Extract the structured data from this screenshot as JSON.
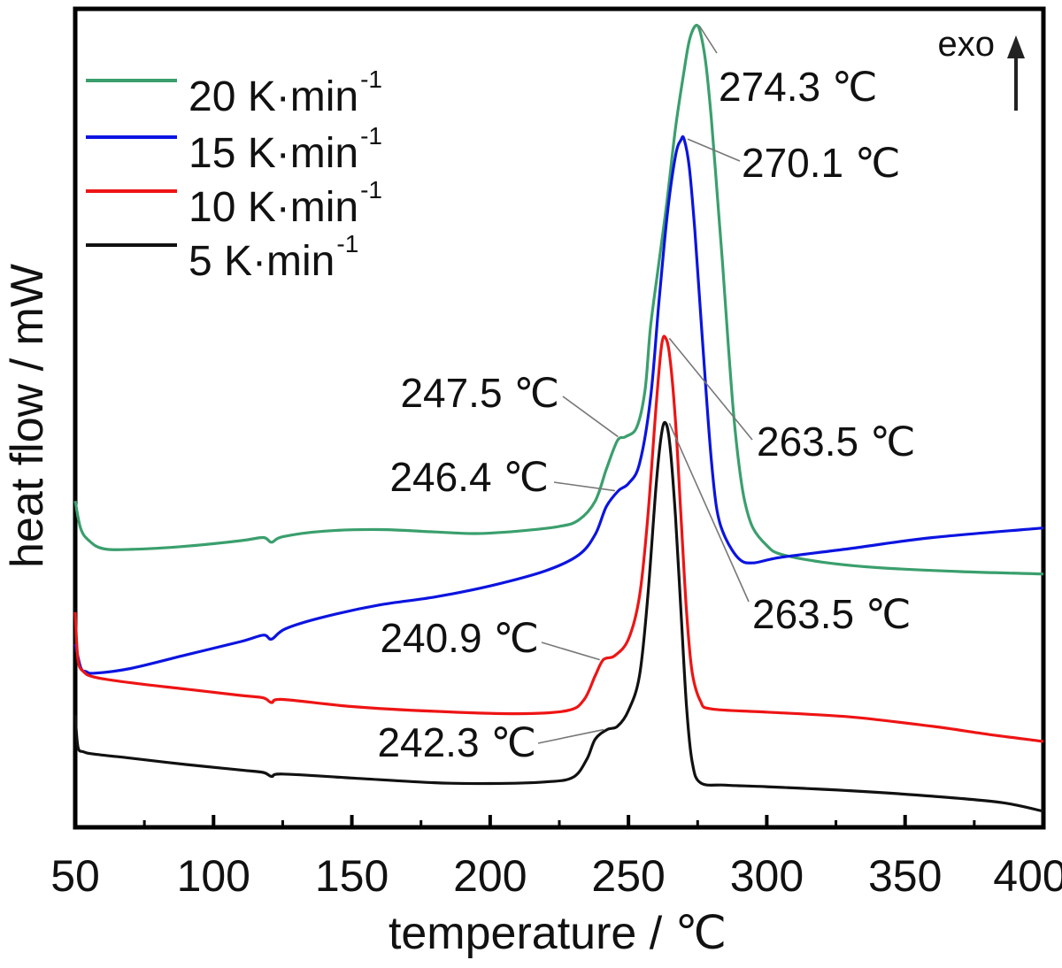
{
  "chart_data": {
    "type": "line",
    "xlabel": "temperature / ℃",
    "ylabel": "heat flow / mW",
    "xlim": [
      50,
      400
    ],
    "ylim": [
      0,
      100
    ],
    "x_ticks": [
      "50",
      "100",
      "150",
      "200",
      "250",
      "300",
      "350",
      "400"
    ],
    "y_ticks_labeled": false,
    "grid": false,
    "legend_position": "top-left",
    "exo_label": "exo",
    "series": [
      {
        "name": "20 K·min",
        "name_sup": "-1",
        "color": "#3a9f6d",
        "points": [
          [
            50,
            40
          ],
          [
            52,
            36.5
          ],
          [
            55,
            35
          ],
          [
            60,
            34
          ],
          [
            70,
            33.9
          ],
          [
            90,
            34.3
          ],
          [
            110,
            35
          ],
          [
            118,
            35.4
          ],
          [
            121,
            34.8
          ],
          [
            125,
            35.5
          ],
          [
            140,
            36.2
          ],
          [
            160,
            36.4
          ],
          [
            180,
            36.1
          ],
          [
            195,
            35.9
          ],
          [
            210,
            36.2
          ],
          [
            225,
            36.8
          ],
          [
            232,
            37.6
          ],
          [
            238,
            40
          ],
          [
            242,
            44
          ],
          [
            246,
            47.6
          ],
          [
            249,
            48.1
          ],
          [
            253,
            49.3
          ],
          [
            256,
            54
          ],
          [
            258,
            62
          ],
          [
            261,
            70
          ],
          [
            264,
            78
          ],
          [
            267,
            87
          ],
          [
            270,
            94
          ],
          [
            272,
            98
          ],
          [
            274.3,
            99.9
          ],
          [
            276,
            99
          ],
          [
            278,
            95
          ],
          [
            280,
            88
          ],
          [
            282,
            79
          ],
          [
            284,
            70
          ],
          [
            286,
            60
          ],
          [
            288,
            51
          ],
          [
            290,
            44.4
          ],
          [
            292,
            40
          ],
          [
            295,
            36.6
          ],
          [
            300,
            34.4
          ],
          [
            305,
            33.3
          ],
          [
            320,
            32.3
          ],
          [
            340,
            31.6
          ],
          [
            370,
            31.1
          ],
          [
            400,
            30.8
          ]
        ]
      },
      {
        "name": "15 K·min",
        "name_sup": "-1",
        "color": "#0b14e0",
        "points": [
          [
            50,
            22
          ],
          [
            52,
            19
          ],
          [
            54,
            18.5
          ],
          [
            57,
            18.3
          ],
          [
            70,
            18.9
          ],
          [
            90,
            20.6
          ],
          [
            110,
            22.3
          ],
          [
            118,
            23.1
          ],
          [
            121,
            22.6
          ],
          [
            126,
            23.9
          ],
          [
            140,
            25.4
          ],
          [
            160,
            26.9
          ],
          [
            180,
            27.9
          ],
          [
            200,
            29.3
          ],
          [
            220,
            31.2
          ],
          [
            232,
            33.2
          ],
          [
            238,
            35.8
          ],
          [
            242,
            39.3
          ],
          [
            246.4,
            41.3
          ],
          [
            250,
            42.2
          ],
          [
            254,
            44.7
          ],
          [
            258,
            53
          ],
          [
            261,
            65
          ],
          [
            264,
            76
          ],
          [
            267,
            83.5
          ],
          [
            269,
            85.5
          ],
          [
            270.1,
            85.6
          ],
          [
            272,
            82
          ],
          [
            274,
            74
          ],
          [
            276,
            64
          ],
          [
            278,
            54
          ],
          [
            280,
            45
          ],
          [
            282,
            38.8
          ],
          [
            285,
            35.4
          ],
          [
            290,
            32.7
          ],
          [
            295,
            32.2
          ],
          [
            305,
            32.9
          ],
          [
            330,
            34
          ],
          [
            360,
            35.4
          ],
          [
            400,
            36.6
          ]
        ]
      },
      {
        "name": "10 K·min",
        "name_sup": "-1",
        "color": "#ee1414",
        "points": [
          [
            50,
            26
          ],
          [
            51,
            20
          ],
          [
            53,
            18.5
          ],
          [
            57,
            17.8
          ],
          [
            70,
            17.1
          ],
          [
            90,
            16.3
          ],
          [
            110,
            15.5
          ],
          [
            118,
            15.2
          ],
          [
            121,
            14.6
          ],
          [
            125,
            15
          ],
          [
            150,
            14.1
          ],
          [
            180,
            13.5
          ],
          [
            210,
            13.2
          ],
          [
            228,
            13.6
          ],
          [
            234,
            15
          ],
          [
            238,
            18
          ],
          [
            240.9,
            20
          ],
          [
            245,
            20.5
          ],
          [
            250,
            22.6
          ],
          [
            254,
            28
          ],
          [
            257,
            38
          ],
          [
            260,
            52
          ],
          [
            262,
            59.7
          ],
          [
            263.5,
            60.5
          ],
          [
            265,
            58
          ],
          [
            267,
            50
          ],
          [
            269,
            38
          ],
          [
            271,
            26
          ],
          [
            273,
            18.5
          ],
          [
            276,
            14.8
          ],
          [
            280,
            13.8
          ],
          [
            300,
            13.4
          ],
          [
            330,
            12.8
          ],
          [
            360,
            11.6
          ],
          [
            380,
            10.6
          ],
          [
            400,
            9.7
          ]
        ]
      },
      {
        "name": "5 K·min",
        "name_sup": "-1",
        "color": "#111111",
        "points": [
          [
            50,
            13
          ],
          [
            51,
            9
          ],
          [
            53,
            8.4
          ],
          [
            57,
            8.1
          ],
          [
            70,
            7.6
          ],
          [
            90,
            6.8
          ],
          [
            110,
            6.1
          ],
          [
            118,
            5.8
          ],
          [
            121,
            5.3
          ],
          [
            125,
            5.6
          ],
          [
            150,
            5.1
          ],
          [
            180,
            4.5
          ],
          [
            200,
            4.4
          ],
          [
            220,
            4.6
          ],
          [
            230,
            5.2
          ],
          [
            235,
            7.5
          ],
          [
            238,
            10
          ],
          [
            242.3,
            11.2
          ],
          [
            246,
            11.6
          ],
          [
            250,
            13.6
          ],
          [
            254,
            18
          ],
          [
            257,
            28
          ],
          [
            260,
            42
          ],
          [
            262,
            48.6
          ],
          [
            263.5,
            49.8
          ],
          [
            265,
            47
          ],
          [
            267,
            38
          ],
          [
            269,
            26
          ],
          [
            271,
            14
          ],
          [
            273,
            7.2
          ],
          [
            276,
            4.5
          ],
          [
            285,
            4.2
          ],
          [
            300,
            4
          ],
          [
            330,
            3.5
          ],
          [
            360,
            2.8
          ],
          [
            385,
            2
          ],
          [
            400,
            0.9
          ]
        ]
      }
    ],
    "annotations": [
      {
        "label": "274.3 ℃",
        "x": 274.3,
        "y": 99.9
      },
      {
        "label": "270.1 ℃",
        "x": 270.1,
        "y": 85.6
      },
      {
        "label": "247.5 ℃",
        "x": 247.5,
        "y": 48.1
      },
      {
        "label": "246.4 ℃",
        "x": 246.4,
        "y": 41.3
      },
      {
        "label": "263.5 ℃",
        "x": 263.5,
        "y": 60.5
      },
      {
        "label": "263.5 ℃",
        "x": 263.5,
        "y": 49.8
      },
      {
        "label": "240.9 ℃",
        "x": 240.9,
        "y": 20
      },
      {
        "label": "242.3 ℃",
        "x": 242.3,
        "y": 11.2
      }
    ]
  }
}
